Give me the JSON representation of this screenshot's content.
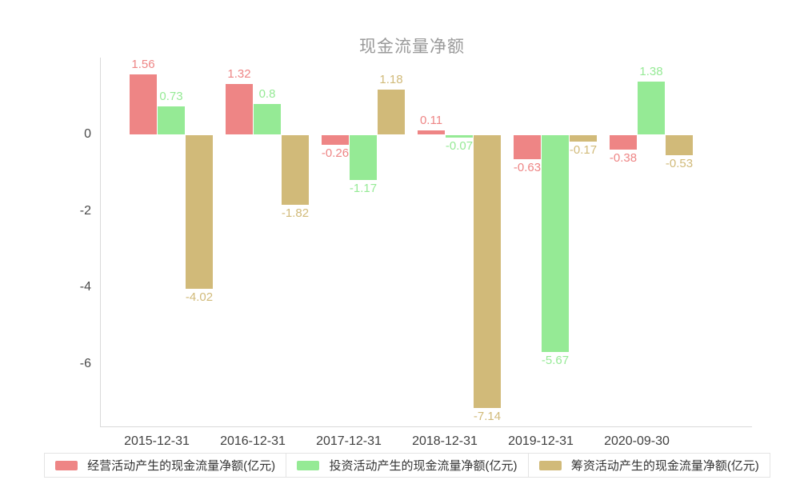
{
  "title": "现金流量净额",
  "chart_data": {
    "type": "bar",
    "title": "现金流量净额",
    "categories": [
      "2015-12-31",
      "2016-12-31",
      "2017-12-31",
      "2018-12-31",
      "2019-12-31",
      "2020-09-30"
    ],
    "series": [
      {
        "name": "经营活动产生的现金流量净额(亿元)",
        "color": "#ee8585",
        "values": [
          1.56,
          1.32,
          -0.26,
          0.11,
          -0.63,
          -0.38
        ]
      },
      {
        "name": "投资活动产生的现金流量净额(亿元)",
        "color": "#95ea95",
        "values": [
          0.73,
          0.8,
          -1.17,
          -0.07,
          -5.67,
          1.38
        ]
      },
      {
        "name": "筹资活动产生的现金流量净额(亿元)",
        "color": "#d1ba79",
        "values": [
          -4.02,
          -1.82,
          1.18,
          -7.14,
          -0.17,
          -0.53
        ]
      }
    ],
    "yticks": [
      0,
      -2,
      -4,
      -6
    ],
    "ylim": [
      -7.64,
      2.01
    ],
    "xlabel": "",
    "ylabel": "",
    "grid": false,
    "value_labels": true,
    "legend_position": "bottom"
  },
  "colors": {
    "title": "#999999",
    "axis_line": "#d9d9d9",
    "tick_text": "#4a4a4a",
    "category_text": "#404040",
    "background": "#ffffff",
    "legend_border": "#e4e4e4"
  }
}
